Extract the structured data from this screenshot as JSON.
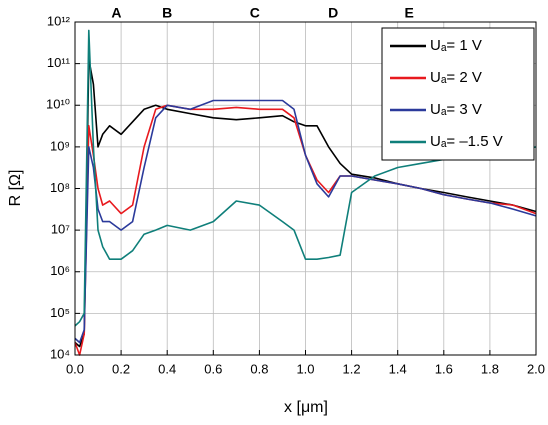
{
  "chart_data": {
    "type": "line",
    "log_y": true,
    "grid": true,
    "legend": "top-right",
    "x_label": "x [μm]",
    "y_label": "R [Ω]",
    "annotations": [
      {
        "text": "A",
        "x": 0.18
      },
      {
        "text": "B",
        "x": 0.4
      },
      {
        "text": "C",
        "x": 0.78
      },
      {
        "text": "D",
        "x": 1.12
      },
      {
        "text": "E",
        "x": 1.45
      }
    ],
    "xlim": [
      0,
      2
    ],
    "xticks": [
      {
        "value": 0,
        "label": "0.0"
      },
      0.2,
      0.4,
      0.6,
      0.8,
      {
        "value": 1,
        "label": "1.0"
      },
      1.2,
      1.4,
      1.6,
      1.8,
      {
        "value": 2,
        "label": "2.0"
      }
    ],
    "ylim": [
      10000,
      1000000000000
    ],
    "yticks": [
      {
        "value": 10000,
        "label": "10⁴"
      },
      {
        "value": 100000,
        "label": "10⁵"
      },
      {
        "value": 1000000,
        "label": "10⁶"
      },
      {
        "value": 10000000,
        "label": "10⁷"
      },
      {
        "value": 100000000,
        "label": "10⁸"
      },
      {
        "value": 1000000000,
        "label": "10⁹"
      },
      {
        "value": 10000000000,
        "label": "10¹⁰"
      },
      {
        "value": 100000000000,
        "label": "10¹¹"
      },
      {
        "value": 1000000000000,
        "label": "10¹²"
      }
    ],
    "x": [
      0,
      0.02,
      0.04,
      0.06,
      0.08,
      0.1,
      0.12,
      0.15,
      0.2,
      0.25,
      0.3,
      0.35,
      0.4,
      0.5,
      0.6,
      0.7,
      0.8,
      0.9,
      0.95,
      1.0,
      1.05,
      1.1,
      1.15,
      1.2,
      1.3,
      1.4,
      1.5,
      1.6,
      1.7,
      1.8,
      1.9,
      2.0
    ],
    "series": [
      {
        "name": "Uₐ= 1 V",
        "color": "#000000",
        "values": [
          20000.0,
          16000.0,
          32000.0,
          130000000000.0,
          32000000000.0,
          1000000000.0,
          2000000000.0,
          3200000000.0,
          2000000000.0,
          4000000000.0,
          8000000000.0,
          10000000000.0,
          8000000000.0,
          6300000000.0,
          5000000000.0,
          4500000000.0,
          5000000000.0,
          5600000000.0,
          4000000000.0,
          3200000000.0,
          3200000000.0,
          1000000000.0,
          400000000.0,
          220000000.0,
          180000000.0,
          130000000.0,
          100000000.0,
          80000000.0,
          63000000.0,
          50000000.0,
          40000000.0,
          28000000.0
        ]
      },
      {
        "name": "Uₐ= 2 V",
        "color": "#e8191e",
        "values": [
          20000.0,
          10000.0,
          32000.0,
          3200000000.0,
          630000000.0,
          100000000.0,
          40000000.0,
          50000000.0,
          25000000.0,
          40000000.0,
          1000000000.0,
          8000000000.0,
          10000000000.0,
          8000000000.0,
          8000000000.0,
          8900000000.0,
          8000000000.0,
          8000000000.0,
          5000000000.0,
          630000000.0,
          160000000.0,
          80000000.0,
          200000000.0,
          200000000.0,
          160000000.0,
          130000000.0,
          100000000.0,
          71000000.0,
          56000000.0,
          45000000.0,
          40000000.0,
          25000000.0
        ]
      },
      {
        "name": "Uₐ= 3 V",
        "color": "#2b3a9b",
        "values": [
          25000.0,
          20000.0,
          40000.0,
          1000000000.0,
          320000000.0,
          32000000.0,
          16000000.0,
          16000000.0,
          10000000.0,
          16000000.0,
          320000000.0,
          5000000000.0,
          10000000000.0,
          8000000000.0,
          13000000000.0,
          13000000000.0,
          13000000000.0,
          13000000000.0,
          8000000000.0,
          630000000.0,
          130000000.0,
          63000000.0,
          200000000.0,
          200000000.0,
          160000000.0,
          130000000.0,
          100000000.0,
          71000000.0,
          56000000.0,
          45000000.0,
          32000000.0,
          22000000.0
        ]
      },
      {
        "name": "Uₐ= –1.5 V",
        "color": "#0f7f7a",
        "values": [
          50000.0,
          63000.0,
          100000.0,
          630000000000.0,
          1000000000.0,
          10000000.0,
          4000000.0,
          2000000.0,
          2000000.0,
          3200000.0,
          8000000.0,
          10000000.0,
          13000000.0,
          10000000.0,
          16000000.0,
          50000000.0,
          40000000.0,
          16000000.0,
          10000000.0,
          2000000.0,
          2000000.0,
          2200000.0,
          2500000.0,
          80000000.0,
          200000000.0,
          320000000.0,
          400000000.0,
          500000000.0,
          630000000.0,
          800000000.0,
          800000000.0,
          1000000000.0
        ]
      }
    ]
  }
}
